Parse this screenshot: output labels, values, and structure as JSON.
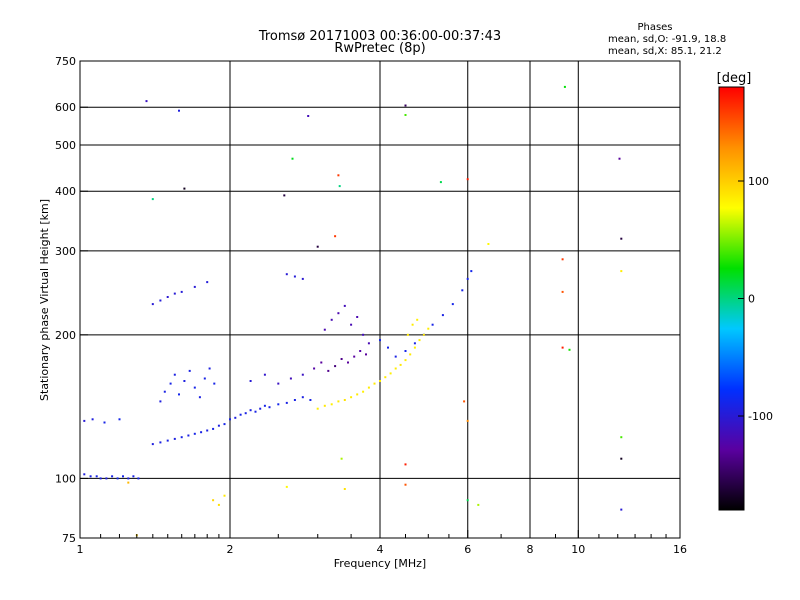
{
  "title": {
    "line1": "Tromsø 20171003 00:36:00-00:37:43",
    "line2": "RwPretec (8p)"
  },
  "stats": {
    "heading": "Phases",
    "line1": "mean, sd,O: -91.9, 18.8",
    "line2": "mean, sd,X:  85.1, 21.2"
  },
  "colorbar": {
    "unit_label": "[deg]",
    "tick_labels": [
      "100",
      "0",
      "-100"
    ],
    "tick_values": [
      100,
      0,
      -100
    ],
    "range": [
      -180,
      180
    ],
    "colormap": "rainbow",
    "colors": [
      "#000000",
      "#5a00a0",
      "#0030ff",
      "#00c8ff",
      "#00e000",
      "#ffff00",
      "#ff9000",
      "#ff0000"
    ]
  },
  "chart_data": {
    "type": "scatter",
    "title": "Tromsø 20171003 00:36:00-00:37:43",
    "subtitle": "RwPretec (8p)",
    "xlabel": "Frequency [MHz]",
    "ylabel": "Stationary phase Virtual Height [km]",
    "xscale": "log",
    "yscale": "log",
    "xlim": [
      1,
      16
    ],
    "ylim": [
      75,
      750
    ],
    "x_ticks": [
      1,
      2,
      4,
      6,
      8,
      10,
      16
    ],
    "x_tick_labels": [
      "1",
      "2",
      "4",
      "6",
      "8",
      "10",
      "16"
    ],
    "x_minor_ticks": [
      1.1,
      1.2,
      1.3,
      1.4,
      1.5,
      1.6,
      1.7,
      1.8,
      1.9,
      2.5,
      3,
      3.5,
      4.5,
      5,
      5.5,
      7,
      9,
      11,
      12,
      13,
      14,
      15
    ],
    "y_ticks": [
      75,
      100,
      200,
      300,
      400,
      500,
      600,
      750
    ],
    "y_tick_labels": [
      "75",
      "100",
      "200",
      "300",
      "400",
      "500",
      "600",
      "750"
    ],
    "x_grid": [
      2,
      4,
      6,
      8,
      10
    ],
    "y_grid": [
      100,
      200,
      300,
      400,
      500,
      600
    ],
    "grid": true,
    "color_variable": "Phase [deg]",
    "series": [
      {
        "points": [
          [
            1.02,
            102,
            -95
          ],
          [
            1.05,
            101,
            -92
          ],
          [
            1.08,
            101,
            -90
          ],
          [
            1.1,
            100,
            -93
          ],
          [
            1.13,
            100,
            -95
          ],
          [
            1.16,
            101,
            -91
          ],
          [
            1.19,
            100,
            -88
          ],
          [
            1.22,
            101,
            -90
          ],
          [
            1.25,
            100,
            -94
          ],
          [
            1.28,
            101,
            -92
          ],
          [
            1.31,
            100,
            -90
          ],
          [
            1.02,
            132,
            -100
          ],
          [
            1.06,
            133,
            -95
          ],
          [
            1.12,
            131,
            -90
          ],
          [
            1.2,
            133,
            -88
          ],
          [
            1.4,
            118,
            -95
          ],
          [
            1.45,
            119,
            -93
          ],
          [
            1.5,
            120,
            -92
          ],
          [
            1.55,
            121,
            -94
          ],
          [
            1.6,
            122,
            -91
          ],
          [
            1.65,
            123,
            -93
          ],
          [
            1.7,
            124,
            -90
          ],
          [
            1.75,
            125,
            -92
          ],
          [
            1.8,
            126,
            -94
          ],
          [
            1.85,
            127,
            -91
          ],
          [
            1.9,
            129,
            -93
          ],
          [
            1.95,
            130,
            -90
          ],
          [
            2.0,
            133,
            -92
          ],
          [
            2.05,
            134,
            -95
          ],
          [
            2.1,
            136,
            -90
          ],
          [
            2.15,
            137,
            -92
          ],
          [
            2.2,
            139,
            -93
          ],
          [
            2.25,
            138,
            -91
          ],
          [
            2.3,
            140,
            -94
          ],
          [
            2.35,
            142,
            -90
          ],
          [
            2.4,
            141,
            -92
          ],
          [
            2.5,
            143,
            -88
          ],
          [
            2.6,
            144,
            -92
          ],
          [
            2.7,
            146,
            -91
          ],
          [
            2.8,
            148,
            -93
          ],
          [
            2.9,
            146,
            -90
          ],
          [
            1.45,
            145,
            -95
          ],
          [
            1.48,
            152,
            -92
          ],
          [
            1.52,
            158,
            -90
          ],
          [
            1.55,
            165,
            -93
          ],
          [
            1.58,
            150,
            -88
          ],
          [
            1.62,
            160,
            -94
          ],
          [
            1.66,
            168,
            -92
          ],
          [
            1.7,
            155,
            -90
          ],
          [
            1.74,
            148,
            -93
          ],
          [
            1.78,
            162,
            -91
          ],
          [
            1.82,
            170,
            -94
          ],
          [
            1.86,
            158,
            -90
          ],
          [
            2.2,
            160,
            -100
          ],
          [
            2.35,
            165,
            -105
          ],
          [
            2.5,
            158,
            -110
          ],
          [
            2.65,
            162,
            -115
          ],
          [
            2.8,
            165,
            -110
          ],
          [
            2.95,
            170,
            -125
          ],
          [
            3.05,
            175,
            -130
          ],
          [
            3.15,
            168,
            -135
          ],
          [
            3.25,
            172,
            -140
          ],
          [
            3.35,
            178,
            -135
          ],
          [
            3.45,
            175,
            -130
          ],
          [
            3.55,
            180,
            -128
          ],
          [
            3.65,
            185,
            -125
          ],
          [
            3.75,
            182,
            -130
          ],
          [
            3.1,
            205,
            -120
          ],
          [
            3.2,
            215,
            -118
          ],
          [
            3.3,
            222,
            -120
          ],
          [
            3.4,
            230,
            -115
          ],
          [
            3.5,
            210,
            -118
          ],
          [
            3.6,
            218,
            -120
          ],
          [
            3.7,
            200,
            -115
          ],
          [
            3.8,
            192,
            -118
          ],
          [
            1.4,
            232,
            -100
          ],
          [
            1.45,
            236,
            -98
          ],
          [
            1.5,
            240,
            -102
          ],
          [
            1.55,
            244,
            -100
          ],
          [
            1.6,
            246,
            -98
          ],
          [
            1.7,
            252,
            -100
          ],
          [
            1.8,
            258,
            -97
          ],
          [
            2.6,
            268,
            -100
          ],
          [
            2.7,
            265,
            -98
          ],
          [
            2.8,
            262,
            -102
          ],
          [
            4.0,
            195,
            -88
          ],
          [
            4.15,
            188,
            -90
          ],
          [
            4.3,
            180,
            -92
          ],
          [
            4.5,
            185,
            -89
          ],
          [
            4.7,
            192,
            -91
          ],
          [
            4.9,
            200,
            -88
          ],
          [
            5.1,
            210,
            -90
          ],
          [
            5.35,
            220,
            -92
          ],
          [
            5.6,
            232,
            -89
          ],
          [
            5.85,
            248,
            -91
          ],
          [
            6.0,
            262,
            -90
          ],
          [
            6.1,
            272,
            -88
          ]
        ]
      },
      {
        "points": [
          [
            3.0,
            140,
            85
          ],
          [
            3.1,
            142,
            88
          ],
          [
            3.2,
            143,
            84
          ],
          [
            3.3,
            145,
            86
          ],
          [
            3.4,
            146,
            90
          ],
          [
            3.5,
            148,
            85
          ],
          [
            3.6,
            150,
            87
          ],
          [
            3.7,
            152,
            84
          ],
          [
            3.8,
            155,
            86
          ],
          [
            3.9,
            158,
            88
          ],
          [
            4.0,
            160,
            85
          ],
          [
            4.1,
            163,
            87
          ],
          [
            4.2,
            166,
            84
          ],
          [
            4.3,
            170,
            86
          ],
          [
            4.4,
            173,
            88
          ],
          [
            4.5,
            177,
            85
          ],
          [
            4.6,
            182,
            87
          ],
          [
            4.7,
            188,
            84
          ],
          [
            4.8,
            195,
            86
          ],
          [
            4.9,
            200,
            88
          ],
          [
            5.0,
            206,
            85
          ],
          [
            4.55,
            200,
            88
          ],
          [
            4.65,
            210,
            86
          ],
          [
            4.75,
            215,
            84
          ],
          [
            1.85,
            90,
            95
          ],
          [
            1.9,
            88,
            92
          ],
          [
            1.95,
            92,
            88
          ],
          [
            6.6,
            310,
            80
          ],
          [
            12.2,
            272,
            85
          ]
        ]
      },
      {
        "points": [
          [
            1.36,
            618,
            -110
          ],
          [
            1.58,
            590,
            -95
          ],
          [
            2.87,
            575,
            -115
          ],
          [
            4.5,
            605,
            -150
          ],
          [
            4.5,
            578,
            40
          ],
          [
            2.67,
            468,
            20
          ],
          [
            3.3,
            432,
            160
          ],
          [
            3.32,
            410,
            0
          ],
          [
            1.4,
            385,
            0
          ],
          [
            5.3,
            418,
            10
          ],
          [
            2.57,
            392,
            -160
          ],
          [
            3.25,
            322,
            160
          ],
          [
            3.0,
            306,
            -160
          ],
          [
            1.62,
            405,
            -170
          ],
          [
            9.4,
            662,
            25
          ],
          [
            9.3,
            288,
            160
          ],
          [
            9.3,
            246,
            150
          ],
          [
            9.3,
            188,
            170
          ],
          [
            9.6,
            186,
            30
          ],
          [
            12.1,
            468,
            -130
          ],
          [
            12.2,
            318,
            -160
          ],
          [
            12.2,
            122,
            40
          ],
          [
            12.2,
            110,
            -170
          ],
          [
            12.2,
            86,
            -100
          ],
          [
            6.0,
            424,
            170
          ],
          [
            6.0,
            90,
            10
          ],
          [
            6.3,
            88,
            60
          ],
          [
            3.35,
            110,
            60
          ],
          [
            3.4,
            95,
            90
          ],
          [
            4.5,
            107,
            170
          ],
          [
            4.5,
            97,
            150
          ],
          [
            5.9,
            145,
            150
          ],
          [
            6.0,
            132,
            130
          ],
          [
            1.3,
            76,
            100
          ],
          [
            2.6,
            96,
            80
          ],
          [
            1.25,
            98,
            110
          ]
        ]
      }
    ]
  }
}
